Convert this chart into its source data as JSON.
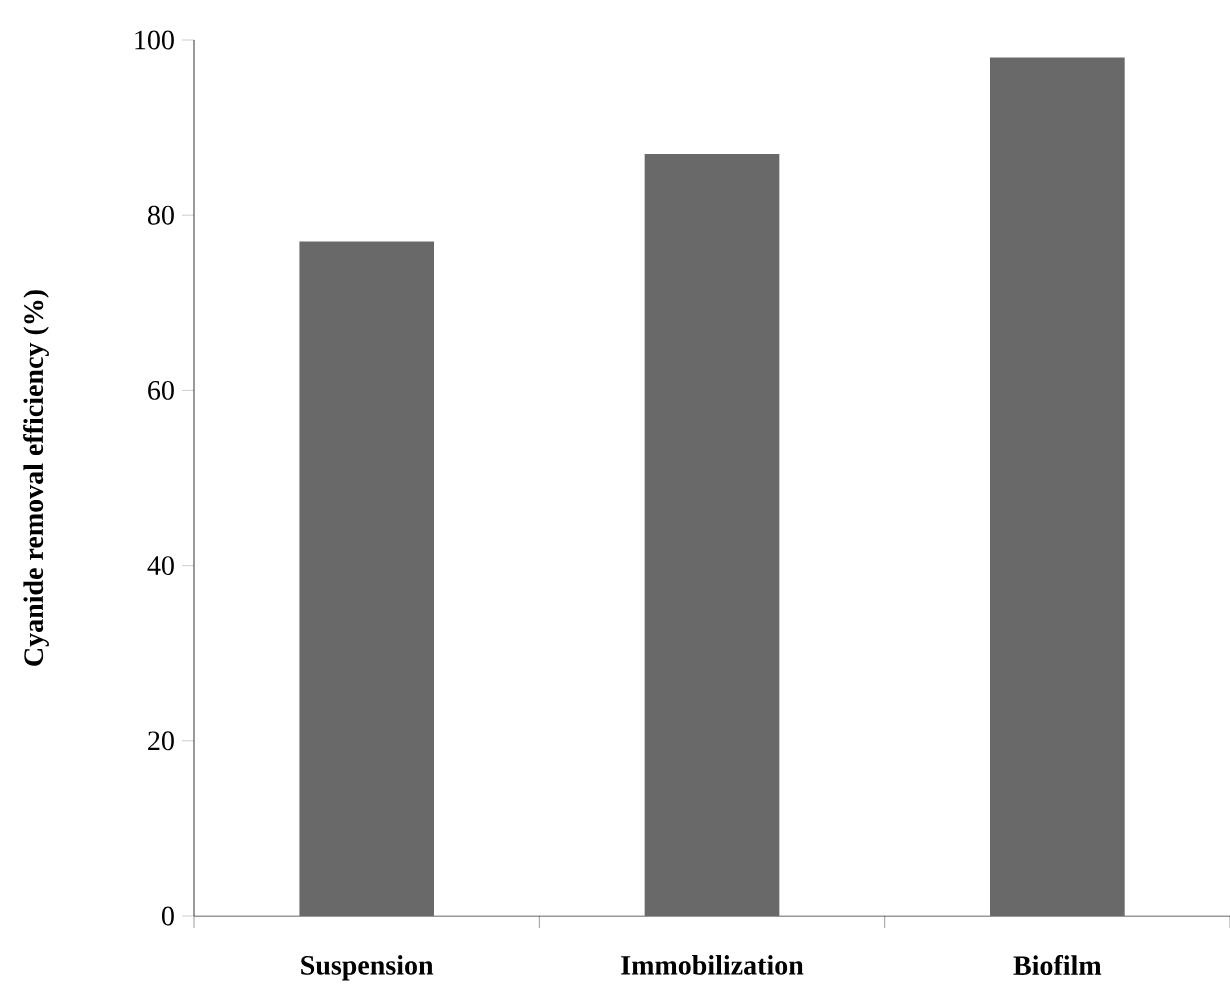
{
  "chart_data": {
    "type": "bar",
    "ylabel": "Cyanide removal efficiency (%)",
    "categories": [
      "Suspension",
      "Immobilization",
      "Biofilm"
    ],
    "values": [
      77,
      87,
      98
    ],
    "color": "#696969",
    "ylim": [
      0,
      100
    ],
    "yticks": [
      0,
      20,
      40,
      60,
      80,
      100
    ],
    "grid": false
  }
}
